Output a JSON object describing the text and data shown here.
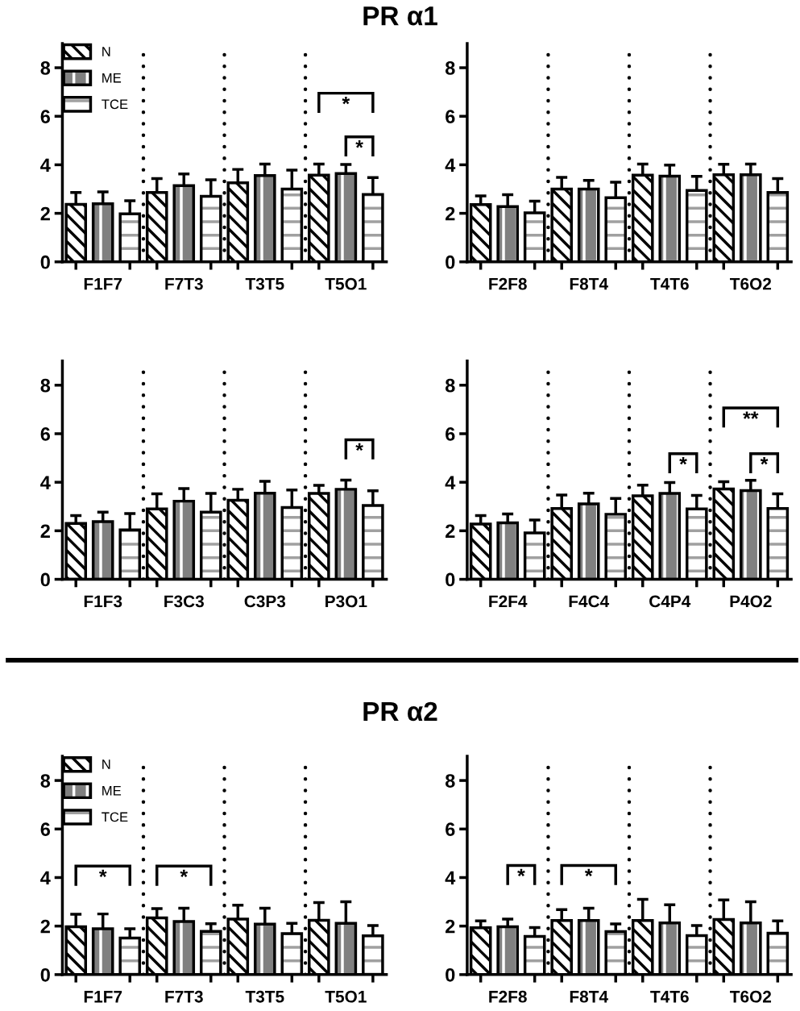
{
  "chart_data": [
    {
      "type": "bar",
      "title": "PR α1",
      "categories": [
        "F1F7",
        "F7T3",
        "T3T5",
        "T5O1"
      ],
      "ylim": [
        0,
        9
      ],
      "yticks": [
        0,
        2,
        4,
        6,
        8
      ],
      "grid": false,
      "legend": "top left",
      "series": [
        {
          "name": "N",
          "color": "#ffffff",
          "values": [
            2.37,
            2.86,
            3.26,
            3.57
          ],
          "errors": [
            0.49,
            0.57,
            0.55,
            0.46
          ]
        },
        {
          "name": "ME",
          "color": "#808080",
          "values": [
            2.39,
            3.14,
            3.56,
            3.64
          ],
          "errors": [
            0.49,
            0.48,
            0.47,
            0.37
          ]
        },
        {
          "name": "TCE",
          "color": "#ffffff",
          "values": [
            1.98,
            2.7,
            3.0,
            2.78
          ],
          "errors": [
            0.54,
            0.68,
            0.78,
            0.69
          ]
        }
      ],
      "annotations": [
        "*",
        "*"
      ]
    },
    {
      "type": "bar",
      "categories": [
        "F2F8",
        "F8T4",
        "T4T6",
        "T6O2"
      ],
      "ylim": [
        0,
        9
      ],
      "yticks": [
        0,
        2,
        4,
        6,
        8
      ],
      "grid": false,
      "series": [
        {
          "color": "#ffffff",
          "values": [
            2.36,
            3.0,
            3.57,
            3.59
          ],
          "errors": [
            0.36,
            0.48,
            0.46,
            0.43
          ]
        },
        {
          "color": "#808080",
          "values": [
            2.28,
            3.0,
            3.53,
            3.59
          ],
          "errors": [
            0.49,
            0.36,
            0.46,
            0.44
          ]
        },
        {
          "color": "#ffffff",
          "values": [
            2.02,
            2.64,
            2.94,
            2.86
          ],
          "errors": [
            0.48,
            0.64,
            0.58,
            0.57
          ]
        }
      ]
    },
    {
      "type": "bar",
      "categories": [
        "F1F3",
        "F3C3",
        "C3P3",
        "P3O1"
      ],
      "ylim": [
        0,
        9
      ],
      "yticks": [
        0,
        2,
        4,
        6,
        8
      ],
      "grid": false,
      "series": [
        {
          "color": "#ffffff",
          "values": [
            2.3,
            2.9,
            3.26,
            3.54
          ],
          "errors": [
            0.33,
            0.62,
            0.45,
            0.33
          ]
        },
        {
          "color": "#808080",
          "values": [
            2.38,
            3.22,
            3.55,
            3.71
          ],
          "errors": [
            0.39,
            0.52,
            0.49,
            0.38
          ]
        },
        {
          "color": "#ffffff",
          "values": [
            2.04,
            2.77,
            2.96,
            3.04
          ],
          "errors": [
            0.67,
            0.77,
            0.72,
            0.61
          ]
        }
      ],
      "annotations": [
        "*"
      ]
    },
    {
      "type": "bar",
      "categories": [
        "F2F4",
        "F4C4",
        "C4P4",
        "P4O2"
      ],
      "ylim": [
        0,
        9
      ],
      "yticks": [
        0,
        2,
        4,
        6,
        8
      ],
      "grid": false,
      "series": [
        {
          "color": "#ffffff",
          "values": [
            2.28,
            2.92,
            3.44,
            3.72
          ],
          "errors": [
            0.35,
            0.55,
            0.44,
            0.3
          ]
        },
        {
          "color": "#808080",
          "values": [
            2.33,
            3.11,
            3.54,
            3.66
          ],
          "errors": [
            0.36,
            0.44,
            0.45,
            0.42
          ]
        },
        {
          "color": "#ffffff",
          "values": [
            1.91,
            2.68,
            2.9,
            2.92
          ],
          "errors": [
            0.53,
            0.65,
            0.56,
            0.6
          ]
        }
      ],
      "annotations": [
        "*",
        "**",
        "*"
      ]
    },
    {
      "type": "bar",
      "title": "PR α2",
      "categories": [
        "F1F7",
        "F7T3",
        "T3T5",
        "T5O1"
      ],
      "ylim": [
        0,
        9
      ],
      "yticks": [
        0,
        2,
        4,
        6,
        8
      ],
      "grid": false,
      "legend": "top left",
      "series": [
        {
          "name": "N",
          "color": "#ffffff",
          "values": [
            1.97,
            2.34,
            2.29,
            2.24
          ],
          "errors": [
            0.52,
            0.38,
            0.57,
            0.73
          ]
        },
        {
          "name": "ME",
          "color": "#808080",
          "values": [
            1.89,
            2.19,
            2.08,
            2.11
          ],
          "errors": [
            0.61,
            0.55,
            0.66,
            0.89
          ]
        },
        {
          "name": "TCE",
          "color": "#ffffff",
          "values": [
            1.51,
            1.78,
            1.69,
            1.6
          ],
          "errors": [
            0.38,
            0.32,
            0.42,
            0.42
          ]
        }
      ],
      "annotations": [
        "*",
        "*"
      ]
    },
    {
      "type": "bar",
      "categories": [
        "F2F8",
        "F8T4",
        "T4T6",
        "T6O2"
      ],
      "ylim": [
        0,
        9
      ],
      "yticks": [
        0,
        2,
        4,
        6,
        8
      ],
      "grid": false,
      "series": [
        {
          "color": "#ffffff",
          "values": [
            1.93,
            2.23,
            2.23,
            2.27
          ],
          "errors": [
            0.28,
            0.45,
            0.87,
            0.81
          ]
        },
        {
          "color": "#808080",
          "values": [
            1.97,
            2.23,
            2.13,
            2.13
          ],
          "errors": [
            0.32,
            0.51,
            0.75,
            0.87
          ]
        },
        {
          "color": "#ffffff",
          "values": [
            1.57,
            1.77,
            1.61,
            1.71
          ],
          "errors": [
            0.37,
            0.32,
            0.41,
            0.5
          ]
        }
      ],
      "annotations": [
        "*",
        "*"
      ]
    }
  ]
}
